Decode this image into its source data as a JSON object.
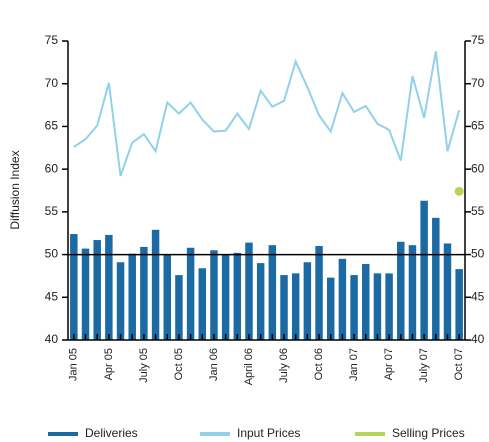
{
  "chart_data": {
    "type": "combo",
    "y_label": "Diffusion Index",
    "categories": [
      "Jan 05",
      null,
      null,
      "Apr 05",
      null,
      null,
      "July 05",
      null,
      null,
      "Oct 05",
      null,
      null,
      "Jan 06",
      null,
      null,
      "April 06",
      null,
      null,
      "July 06",
      null,
      null,
      "Oct 06",
      null,
      null,
      "Jan 07",
      null,
      null,
      "Apr 07",
      null,
      null,
      "July 07",
      null,
      null,
      "Oct 07"
    ],
    "series": [
      {
        "name": "Deliveries",
        "type": "bar",
        "color": "#1b6aa3",
        "values": [
          52.4,
          50.7,
          51.7,
          52.3,
          49.1,
          50.1,
          50.9,
          52.9,
          50.0,
          47.6,
          50.8,
          48.4,
          50.5,
          50.0,
          50.2,
          51.4,
          49.0,
          51.1,
          47.6,
          47.8,
          49.1,
          51.0,
          47.3,
          49.5,
          47.6,
          48.9,
          47.8,
          47.8,
          51.5,
          51.1,
          56.3,
          54.3,
          51.3,
          48.3
        ]
      },
      {
        "name": "Input Prices",
        "type": "line",
        "color": "#92d1ea",
        "values": [
          62.6,
          63.5,
          65.1,
          70.1,
          59.2,
          63.1,
          64.1,
          62.1,
          67.8,
          66.5,
          67.8,
          65.8,
          64.4,
          64.5,
          66.5,
          64.7,
          69.2,
          67.3,
          68.0,
          72.6,
          69.6,
          66.3,
          64.4,
          68.9,
          66.7,
          67.4,
          65.3,
          64.6,
          61.0,
          70.9,
          66.0,
          73.8,
          62.1,
          66.9
        ]
      },
      {
        "name": "Selling Prices",
        "type": "scatter",
        "color": "#b7d45a",
        "values": [
          null,
          null,
          null,
          null,
          null,
          null,
          null,
          null,
          null,
          null,
          null,
          null,
          null,
          null,
          null,
          null,
          null,
          null,
          null,
          null,
          null,
          null,
          null,
          null,
          null,
          null,
          null,
          null,
          null,
          null,
          null,
          null,
          null,
          57.4
        ]
      }
    ],
    "ylim": [
      40,
      75
    ],
    "yticks": [
      40,
      45,
      50,
      55,
      60,
      65,
      70,
      75
    ],
    "y2lim": [
      40,
      75
    ],
    "y2ticks": [
      40,
      45,
      50,
      55,
      60,
      65,
      70,
      75
    ],
    "reference_line": 50
  }
}
